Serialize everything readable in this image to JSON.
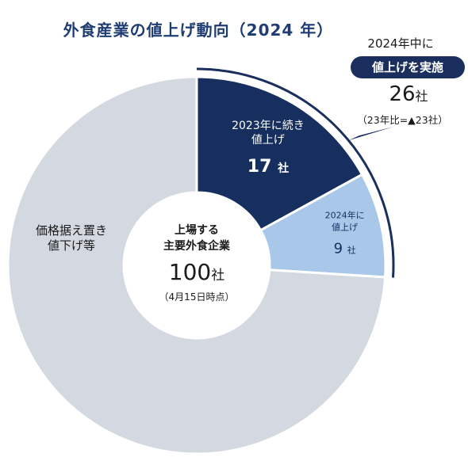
{
  "header": {
    "title": "外食産業の値上げ動向（2024 年）"
  },
  "center": {
    "line1": "上場する",
    "line2": "主要外食企業",
    "value": "100",
    "unit": "社",
    "note": "（4月15日時点）"
  },
  "annotation": {
    "top": "2024年中に",
    "badge": "値上げを実施",
    "value": "26",
    "unit": "社",
    "note": "（23年比=▲23社）"
  },
  "colors": {
    "dark": "#172f5f",
    "light": "#a9c7e8",
    "gray": "#d3d8e1",
    "accent": "#1a2f5e"
  },
  "chart_data": {
    "type": "pie",
    "title": "外食産業の値上げ動向（2024 年）",
    "total": 100,
    "unit": "社",
    "slices": [
      {
        "label_lines": [
          "2023年に続き",
          "値上げ"
        ],
        "value": 17,
        "display": "17",
        "unit": "社",
        "color": "#172f5f",
        "text_color": "#ffffff"
      },
      {
        "label_lines": [
          "2024年に",
          "値上げ"
        ],
        "value": 9,
        "display": "9",
        "unit": "社",
        "color": "#a9c7e8",
        "text_color": "#172f5f"
      },
      {
        "label_lines": [
          "価格据え置き",
          "値下げ等"
        ],
        "value": 74,
        "display": "",
        "unit": "",
        "color": "#d3d8e1",
        "text_color": "#1a1a1a"
      }
    ]
  }
}
